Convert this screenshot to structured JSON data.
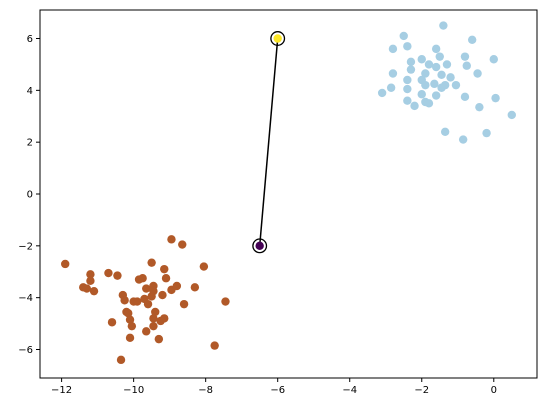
{
  "chart_data": {
    "type": "scatter",
    "title": "",
    "xlabel": "",
    "ylabel": "",
    "xlim": [
      -12.6,
      1.2
    ],
    "ylim": [
      -7.1,
      7.1
    ],
    "grid": false,
    "x_ticks": [
      -12,
      -10,
      -8,
      -6,
      -4,
      -2,
      0
    ],
    "y_ticks": [
      -6,
      -4,
      -2,
      0,
      2,
      4,
      6
    ],
    "x_tick_labels": [
      "−12",
      "−10",
      "−8",
      "−6",
      "−4",
      "−2",
      "0"
    ],
    "y_tick_labels": [
      "−6",
      "−4",
      "−2",
      "0",
      "2",
      "4",
      "6"
    ],
    "series": [
      {
        "color": "#a6cee3",
        "points": [
          [
            -1.4,
            6.5
          ],
          [
            -2.5,
            6.1
          ],
          [
            -0.6,
            5.95
          ],
          [
            -2.8,
            5.6
          ],
          [
            -2.4,
            5.7
          ],
          [
            -1.6,
            5.6
          ],
          [
            -2.0,
            5.2
          ],
          [
            -1.5,
            5.3
          ],
          [
            -2.3,
            5.1
          ],
          [
            -1.8,
            5.0
          ],
          [
            -1.3,
            5.0
          ],
          [
            -0.8,
            5.3
          ],
          [
            -1.6,
            4.9
          ],
          [
            -2.3,
            4.8
          ],
          [
            -0.75,
            4.95
          ],
          [
            0.0,
            5.2
          ],
          [
            -2.8,
            4.65
          ],
          [
            -1.9,
            4.65
          ],
          [
            -1.45,
            4.6
          ],
          [
            -0.45,
            4.65
          ],
          [
            -2.4,
            4.4
          ],
          [
            -2.0,
            4.4
          ],
          [
            -1.2,
            4.5
          ],
          [
            -1.65,
            4.25
          ],
          [
            -1.05,
            4.2
          ],
          [
            -1.9,
            4.2
          ],
          [
            -1.35,
            4.2
          ],
          [
            -2.4,
            4.05
          ],
          [
            -2.85,
            4.1
          ],
          [
            -1.45,
            4.1
          ],
          [
            -2.0,
            3.85
          ],
          [
            -1.6,
            3.8
          ],
          [
            -3.1,
            3.9
          ],
          [
            -2.4,
            3.6
          ],
          [
            -0.8,
            3.75
          ],
          [
            0.05,
            3.7
          ],
          [
            -1.9,
            3.55
          ],
          [
            -2.2,
            3.4
          ],
          [
            -1.8,
            3.5
          ],
          [
            -0.4,
            3.35
          ],
          [
            0.5,
            3.05
          ],
          [
            -1.35,
            2.4
          ],
          [
            -0.2,
            2.35
          ],
          [
            -0.85,
            2.1
          ]
        ]
      },
      {
        "color": "#b15928",
        "points": [
          [
            -11.9,
            -2.7
          ],
          [
            -11.4,
            -3.6
          ],
          [
            -11.2,
            -3.1
          ],
          [
            -11.2,
            -3.35
          ],
          [
            -11.1,
            -3.75
          ],
          [
            -11.3,
            -3.65
          ],
          [
            -10.7,
            -3.05
          ],
          [
            -10.45,
            -3.15
          ],
          [
            -10.6,
            -4.95
          ],
          [
            -10.3,
            -3.9
          ],
          [
            -10.25,
            -4.1
          ],
          [
            -10.2,
            -4.55
          ],
          [
            -10.15,
            -4.6
          ],
          [
            -10.0,
            -4.15
          ],
          [
            -9.9,
            -4.15
          ],
          [
            -10.1,
            -4.85
          ],
          [
            -10.05,
            -5.1
          ],
          [
            -10.1,
            -5.55
          ],
          [
            -10.35,
            -6.4
          ],
          [
            -9.85,
            -3.3
          ],
          [
            -9.75,
            -3.25
          ],
          [
            -9.7,
            -4.05
          ],
          [
            -9.65,
            -3.65
          ],
          [
            -9.6,
            -4.25
          ],
          [
            -9.5,
            -3.95
          ],
          [
            -9.45,
            -3.55
          ],
          [
            -9.45,
            -3.75
          ],
          [
            -9.5,
            -2.65
          ],
          [
            -9.4,
            -4.55
          ],
          [
            -9.45,
            -4.8
          ],
          [
            -9.65,
            -5.3
          ],
          [
            -9.45,
            -5.1
          ],
          [
            -9.3,
            -5.6
          ],
          [
            -9.25,
            -4.9
          ],
          [
            -9.15,
            -4.8
          ],
          [
            -9.1,
            -3.25
          ],
          [
            -9.15,
            -2.9
          ],
          [
            -9.2,
            -3.9
          ],
          [
            -8.95,
            -3.7
          ],
          [
            -8.95,
            -1.75
          ],
          [
            -8.8,
            -3.55
          ],
          [
            -8.65,
            -1.95
          ],
          [
            -8.6,
            -4.25
          ],
          [
            -8.3,
            -3.6
          ],
          [
            -8.05,
            -2.8
          ],
          [
            -7.45,
            -4.15
          ],
          [
            -7.75,
            -5.85
          ]
        ]
      }
    ],
    "highlight": {
      "points": [
        {
          "x": -6.5,
          "y": -2.0,
          "color": "#440154"
        },
        {
          "x": -6.0,
          "y": 6.0,
          "color": "#fde725"
        }
      ],
      "line_color": "#000000"
    }
  }
}
